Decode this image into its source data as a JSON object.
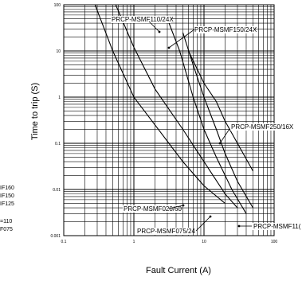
{
  "chart_data": {
    "type": "line",
    "title": "",
    "xlabel": "Fault Current (A)",
    "ylabel": "Time to trip (S)",
    "x_scale": "log",
    "y_scale": "log",
    "xlim": [
      0.1,
      100
    ],
    "ylim": [
      0.001,
      100
    ],
    "x_ticks": [
      "0.1",
      "1",
      "10",
      "100"
    ],
    "y_ticks": [
      "100",
      "10",
      "1",
      "0.1",
      "0.01",
      "0.001"
    ],
    "grid": true,
    "series": [
      {
        "name": "PRCP-MSMF020/60",
        "x": [
          0.28,
          0.5,
          1,
          2,
          5,
          10,
          20
        ],
        "y": [
          100,
          10,
          1,
          0.25,
          0.04,
          0.012,
          0.005
        ]
      },
      {
        "name": "PRCP-MSMF075/24",
        "x": [
          0.55,
          1,
          2,
          5,
          10,
          20,
          30
        ],
        "y": [
          100,
          12,
          1.5,
          0.2,
          0.04,
          0.008,
          0.004
        ]
      },
      {
        "name": "PRCP-MSMF110/24X",
        "x": [
          3,
          4.5,
          7,
          10,
          15,
          25,
          40
        ],
        "y": [
          50,
          10,
          1,
          0.2,
          0.05,
          0.01,
          0.003
        ]
      },
      {
        "name": "PRCP-MSMF150/24X",
        "x": [
          5,
          7,
          10,
          15,
          20,
          30,
          50
        ],
        "y": [
          25,
          5,
          1,
          0.2,
          0.06,
          0.015,
          0.004
        ]
      },
      {
        "name": "PRCP-MSMF250/16X",
        "x": [
          6,
          10,
          15,
          20,
          30,
          50
        ],
        "y": [
          10,
          2,
          0.8,
          0.3,
          0.1,
          0.025
        ]
      }
    ],
    "annotations": [
      {
        "text": "PRCP-MSMF110/24X",
        "series": "PRCP-MSMF110/24X"
      },
      {
        "text": "PRCP-MSMF150/24X",
        "series": "PRCP-MSMF150/24X"
      },
      {
        "text": "PRCP-MSMF250/16X",
        "series": "PRCP-MSMF250/16X"
      },
      {
        "text": "PRCP-MSMF020/60",
        "series": "PRCP-MSMF020/60"
      },
      {
        "text": "PRCP-MSMF075/24",
        "series": "PRCP-MSMF075/24"
      },
      {
        "text": "PRCP-MSMF11(",
        "series": "PRCP-MSMF110/24X"
      }
    ],
    "left_fragments": [
      "IF160",
      "IF150",
      "IF125",
      "=110",
      "F075"
    ]
  }
}
